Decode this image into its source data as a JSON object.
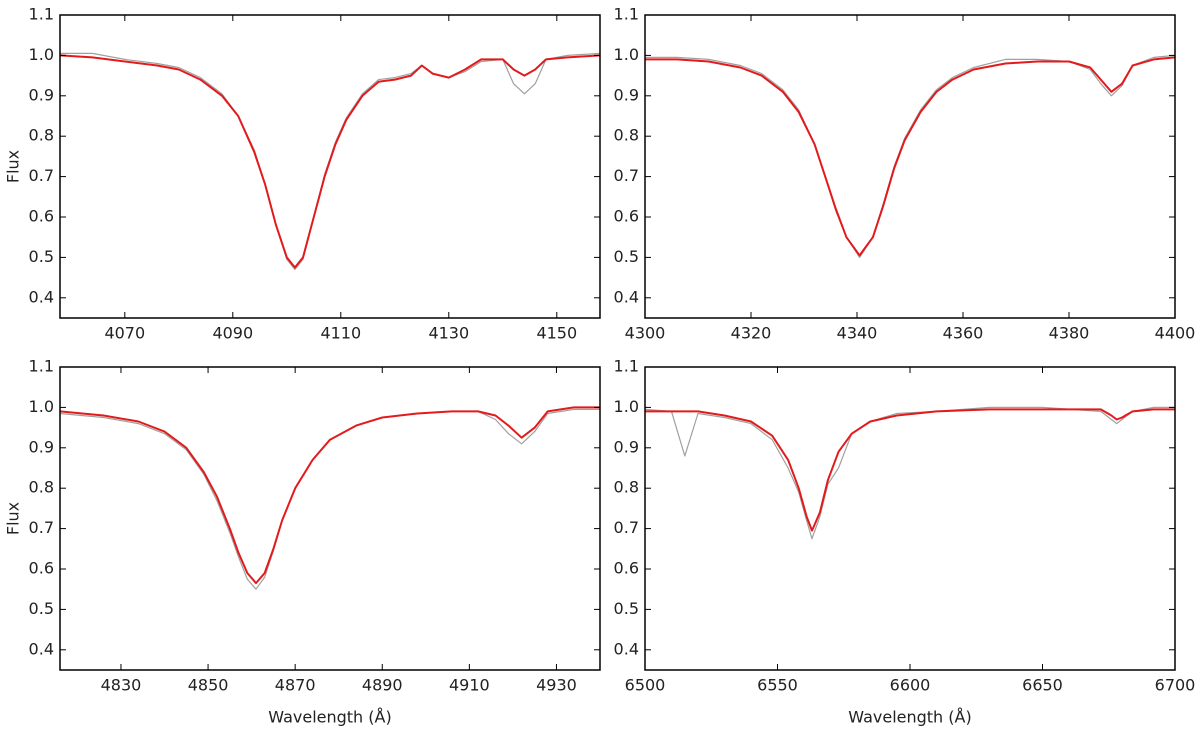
{
  "chart_data": [
    {
      "type": "line",
      "x": [
        4058,
        4064,
        4070,
        4076,
        4080,
        4084,
        4088,
        4091,
        4094,
        4096,
        4098,
        4100,
        4101.5,
        4103,
        4105,
        4107,
        4109,
        4111,
        4114,
        4117,
        4120,
        4123,
        4125,
        4127,
        4130,
        4133,
        4136,
        4140,
        4142,
        4144,
        4146,
        4148,
        4152,
        4158
      ],
      "series": [
        {
          "color": "#a0a0a0",
          "values": [
            1.005,
            1.005,
            0.99,
            0.98,
            0.97,
            0.945,
            0.905,
            0.85,
            0.765,
            0.68,
            0.58,
            0.495,
            0.47,
            0.495,
            0.6,
            0.705,
            0.785,
            0.845,
            0.905,
            0.94,
            0.945,
            0.955,
            0.975,
            0.955,
            0.945,
            0.96,
            0.985,
            0.99,
            0.93,
            0.905,
            0.93,
            0.99,
            1.0,
            1.005
          ]
        },
        {
          "color": "#e31a1c",
          "values": [
            1.0,
            0.995,
            0.985,
            0.975,
            0.965,
            0.94,
            0.9,
            0.85,
            0.76,
            0.68,
            0.58,
            0.5,
            0.475,
            0.5,
            0.6,
            0.7,
            0.78,
            0.84,
            0.9,
            0.935,
            0.94,
            0.95,
            0.975,
            0.955,
            0.945,
            0.965,
            0.99,
            0.99,
            0.965,
            0.95,
            0.965,
            0.99,
            0.995,
            1.0
          ]
        }
      ],
      "xlim": [
        4058,
        4158
      ],
      "xticks": [
        4070,
        4090,
        4110,
        4130,
        4150
      ],
      "ylim": [
        0.35,
        1.1
      ],
      "yticks": [
        0.4,
        0.5,
        0.6,
        0.7,
        0.8,
        0.9,
        {
          "value": 1,
          "label": "1.0"
        },
        1.1
      ],
      "ylabel": "Flux"
    },
    {
      "type": "line",
      "x": [
        4300,
        4306,
        4312,
        4318,
        4322,
        4326,
        4329,
        4332,
        4334,
        4336,
        4338,
        4340.5,
        4343,
        4345,
        4347,
        4349,
        4352,
        4355,
        4358,
        4362,
        4368,
        4374,
        4380,
        4384,
        4386,
        4388,
        4390,
        4392,
        4396,
        4400
      ],
      "series": [
        {
          "color": "#a0a0a0",
          "values": [
            0.995,
            0.995,
            0.99,
            0.975,
            0.955,
            0.915,
            0.865,
            0.78,
            0.7,
            0.615,
            0.55,
            0.5,
            0.55,
            0.635,
            0.725,
            0.795,
            0.865,
            0.915,
            0.945,
            0.97,
            0.99,
            0.99,
            0.985,
            0.965,
            0.93,
            0.9,
            0.925,
            0.975,
            0.995,
            1.0
          ]
        },
        {
          "color": "#e31a1c",
          "values": [
            0.99,
            0.99,
            0.985,
            0.97,
            0.95,
            0.91,
            0.86,
            0.78,
            0.7,
            0.62,
            0.55,
            0.505,
            0.55,
            0.63,
            0.72,
            0.79,
            0.86,
            0.91,
            0.94,
            0.965,
            0.98,
            0.985,
            0.985,
            0.97,
            0.94,
            0.91,
            0.93,
            0.975,
            0.99,
            0.995
          ]
        }
      ],
      "xlim": [
        4300,
        4400
      ],
      "xticks": [
        4300,
        4320,
        4340,
        4360,
        4380,
        4400
      ],
      "ylim": [
        0.35,
        1.1
      ],
      "yticks": [
        0.4,
        0.5,
        0.6,
        0.7,
        0.8,
        0.9,
        {
          "value": 1,
          "label": "1.0"
        },
        1.1
      ]
    },
    {
      "type": "line",
      "x": [
        4816,
        4826,
        4834,
        4840,
        4845,
        4849,
        4852,
        4855,
        4857,
        4859,
        4861,
        4863,
        4865,
        4867,
        4870,
        4874,
        4878,
        4884,
        4890,
        4898,
        4906,
        4912,
        4916,
        4919,
        4922,
        4925,
        4928,
        4934,
        4940
      ],
      "series": [
        {
          "color": "#a0a0a0",
          "values": [
            0.985,
            0.975,
            0.96,
            0.935,
            0.895,
            0.835,
            0.77,
            0.69,
            0.63,
            0.575,
            0.55,
            0.58,
            0.645,
            0.72,
            0.8,
            0.87,
            0.92,
            0.955,
            0.975,
            0.985,
            0.99,
            0.99,
            0.97,
            0.935,
            0.91,
            0.94,
            0.985,
            0.995,
            0.995
          ]
        },
        {
          "color": "#e31a1c",
          "values": [
            0.99,
            0.98,
            0.965,
            0.94,
            0.9,
            0.84,
            0.78,
            0.7,
            0.64,
            0.59,
            0.565,
            0.59,
            0.65,
            0.72,
            0.8,
            0.87,
            0.92,
            0.955,
            0.975,
            0.985,
            0.99,
            0.99,
            0.98,
            0.955,
            0.925,
            0.95,
            0.99,
            1.0,
            1.0
          ]
        }
      ],
      "xlim": [
        4816,
        4940
      ],
      "xticks": [
        4830,
        4850,
        4870,
        4890,
        4910,
        4930
      ],
      "ylim": [
        0.35,
        1.1
      ],
      "yticks": [
        0.4,
        0.5,
        0.6,
        0.7,
        0.8,
        0.9,
        {
          "value": 1,
          "label": "1.0"
        },
        1.1
      ],
      "xlabel": "Wavelength (Å)",
      "ylabel": "Flux"
    },
    {
      "type": "line",
      "x": [
        6500,
        6510,
        6515,
        6520,
        6530,
        6540,
        6548,
        6554,
        6558,
        6561,
        6563,
        6566,
        6569,
        6573,
        6578,
        6585,
        6595,
        6610,
        6630,
        6650,
        6672,
        6676,
        6678,
        6680,
        6684,
        6692,
        6700
      ],
      "series": [
        {
          "color": "#a0a0a0",
          "values": [
            0.995,
            0.99,
            0.88,
            0.985,
            0.975,
            0.96,
            0.92,
            0.85,
            0.79,
            0.72,
            0.675,
            0.73,
            0.81,
            0.85,
            0.935,
            0.965,
            0.985,
            0.99,
            1.0,
            1.0,
            0.99,
            0.97,
            0.96,
            0.97,
            0.99,
            1.0,
            1.0
          ]
        },
        {
          "color": "#e31a1c",
          "values": [
            0.99,
            0.99,
            0.99,
            0.99,
            0.98,
            0.965,
            0.93,
            0.87,
            0.8,
            0.73,
            0.695,
            0.74,
            0.82,
            0.89,
            0.935,
            0.965,
            0.98,
            0.99,
            0.995,
            0.995,
            0.995,
            0.98,
            0.97,
            0.975,
            0.99,
            0.995,
            0.995
          ]
        }
      ],
      "xlim": [
        6500,
        6700
      ],
      "xticks": [
        6500,
        6550,
        6600,
        6650,
        6700
      ],
      "ylim": [
        0.35,
        1.1
      ],
      "yticks": [
        0.4,
        0.5,
        0.6,
        0.7,
        0.8,
        0.9,
        {
          "value": 1,
          "label": "1.0"
        },
        1.1
      ],
      "xlabel": "Wavelength (Å)"
    }
  ]
}
